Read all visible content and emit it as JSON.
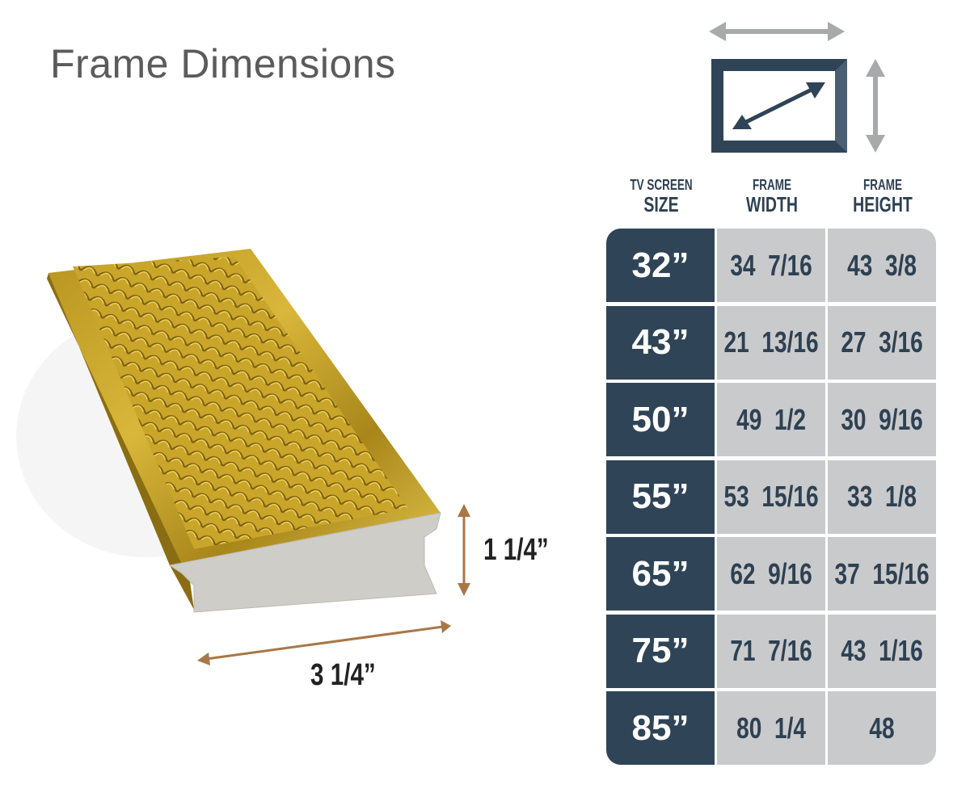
{
  "title": "Frame Dimensions",
  "molding": {
    "height_label": "1 1/4”",
    "width_label": "3 1/4”",
    "arrow_color": "#a87747"
  },
  "icon": {
    "name": "tv-frame-dimensions-icon",
    "frame_color": "#2f4456",
    "arrow_color": "#a7a9ab"
  },
  "table": {
    "headers": [
      {
        "line1": "TV SCREEN",
        "line2": "SIZE"
      },
      {
        "line1": "FRAME",
        "line2": "WIDTH"
      },
      {
        "line1": "FRAME",
        "line2": "HEIGHT"
      }
    ],
    "rows": [
      {
        "size": "32”",
        "width": "34  7/16",
        "height": "43  3/8"
      },
      {
        "size": "43”",
        "width": "21  13/16",
        "height": "27  3/16"
      },
      {
        "size": "50”",
        "width": "49  1/2",
        "height": "30  9/16"
      },
      {
        "size": "55”",
        "width": "53  15/16",
        "height": "33  1/8"
      },
      {
        "size": "65”",
        "width": "62  9/16",
        "height": "37  15/16"
      },
      {
        "size": "75”",
        "width": "71  7/16",
        "height": "43  1/16"
      },
      {
        "size": "85”",
        "width": "80  1/4",
        "height": "48"
      }
    ],
    "colors": {
      "size_bg": "#2f4456",
      "value_bg": "#c9cacc",
      "value_text": "#2e4152"
    }
  }
}
